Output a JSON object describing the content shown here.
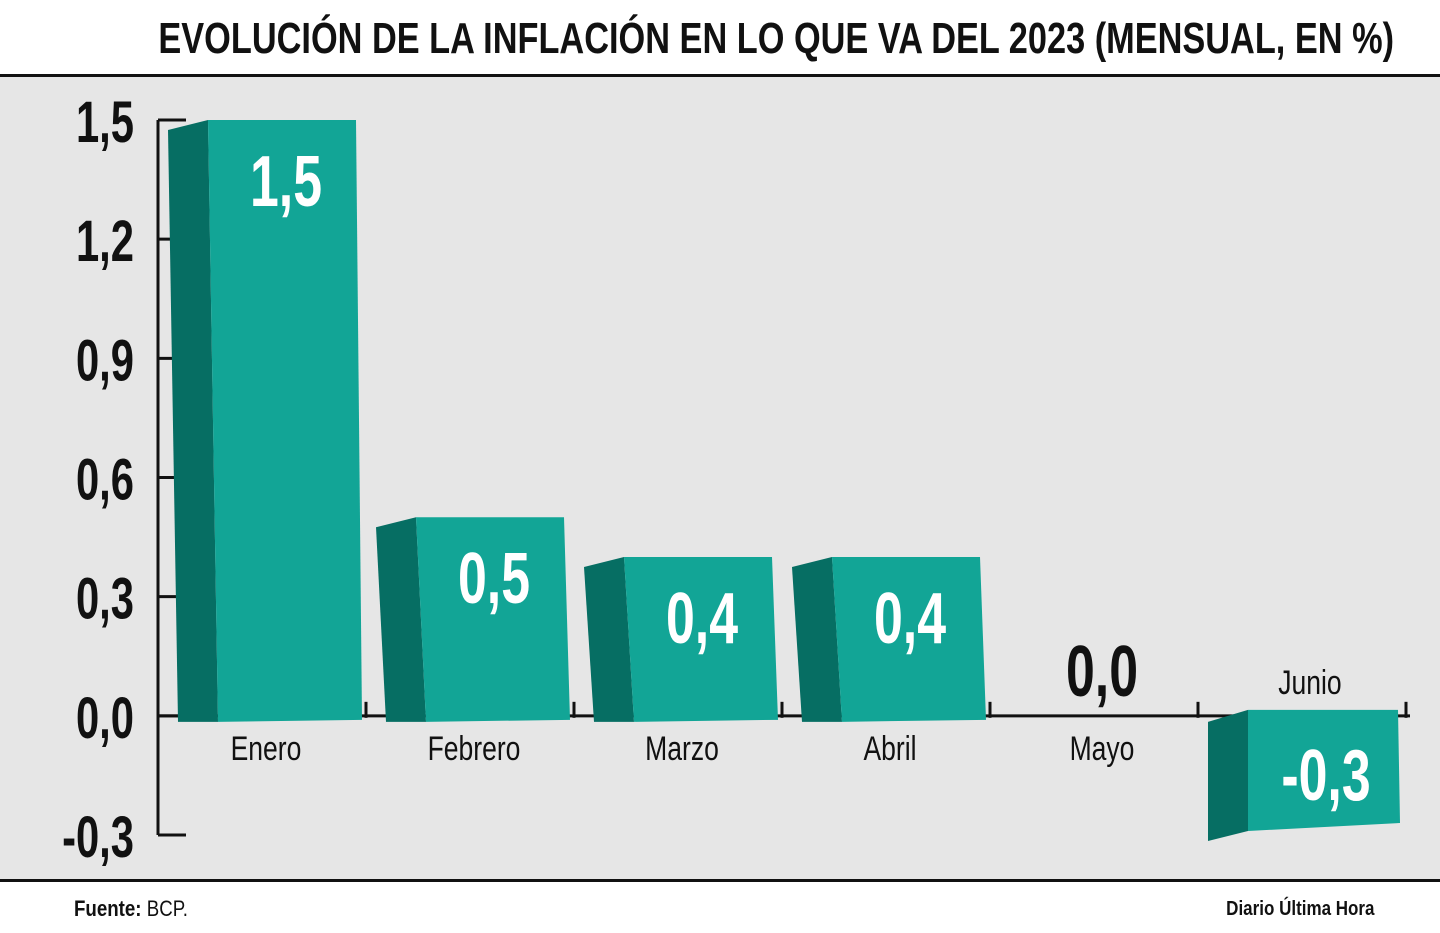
{
  "title": "EVOLUCIÓN DE LA INFLACIÓN EN LO QUE VA DEL 2023 (MENSUAL, EN %)",
  "footer": {
    "source_label": "Fuente:",
    "source_value": "BCP.",
    "credit": "Diario Última Hora"
  },
  "colors": {
    "bar_front": "#12a596",
    "bar_side": "#066e63",
    "background": "#e6e6e6",
    "value_label": "#ffffff",
    "axis": "#111111"
  },
  "chart_data": {
    "type": "bar",
    "categories": [
      "Enero",
      "Febrero",
      "Marzo",
      "Abril",
      "Mayo",
      "Junio"
    ],
    "values": [
      1.5,
      0.5,
      0.4,
      0.4,
      0.0,
      -0.3
    ],
    "value_labels": [
      "1,5",
      "0,5",
      "0,4",
      "0,4",
      "0,0",
      "-0,3"
    ],
    "yticks": [
      -0.3,
      0.0,
      0.3,
      0.6,
      0.9,
      1.2,
      1.5
    ],
    "ytick_labels": [
      "-0,3",
      "0,0",
      "0,3",
      "0,6",
      "0,9",
      "1,2",
      "1,5"
    ],
    "ylim": [
      -0.3,
      1.5
    ],
    "title": "EVOLUCIÓN DE LA INFLACIÓN EN LO QUE VA DEL 2023 (MENSUAL, EN %)",
    "xlabel": "",
    "ylabel": "",
    "grid": false,
    "style": "3d-bars"
  }
}
